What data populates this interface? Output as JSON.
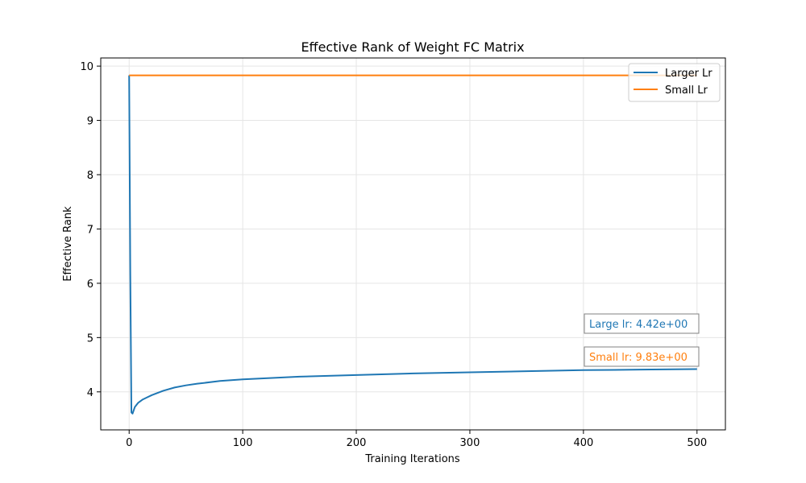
{
  "chart_data": {
    "type": "line",
    "title": "Effective Rank of Weight FC Matrix",
    "xlabel": "Training Iterations",
    "ylabel": "Effective Rank",
    "xlim": [
      -25,
      525
    ],
    "ylim": [
      3.3,
      10.15
    ],
    "xticks": [
      0,
      100,
      200,
      300,
      400,
      500
    ],
    "yticks": [
      4,
      5,
      6,
      7,
      8,
      9,
      10
    ],
    "grid": true,
    "legend_position": "top-right",
    "series": [
      {
        "name": "Larger Lr",
        "color": "#1f77b4",
        "x": [
          0,
          1,
          2,
          3,
          5,
          8,
          12,
          16,
          20,
          30,
          40,
          50,
          60,
          80,
          100,
          150,
          200,
          250,
          300,
          350,
          400,
          450,
          500
        ],
        "y": [
          9.83,
          6.2,
          3.62,
          3.6,
          3.72,
          3.8,
          3.86,
          3.9,
          3.94,
          4.02,
          4.08,
          4.12,
          4.15,
          4.2,
          4.23,
          4.28,
          4.31,
          4.34,
          4.36,
          4.38,
          4.4,
          4.41,
          4.42
        ]
      },
      {
        "name": "Small Lr",
        "color": "#ff7f0e",
        "x": [
          0,
          500
        ],
        "y": [
          9.83,
          9.83
        ]
      }
    ],
    "annotations": [
      {
        "text": "Large lr: 4.42e+00",
        "color": "#1f77b4"
      },
      {
        "text": "Small lr: 9.83e+00",
        "color": "#ff7f0e"
      }
    ]
  }
}
